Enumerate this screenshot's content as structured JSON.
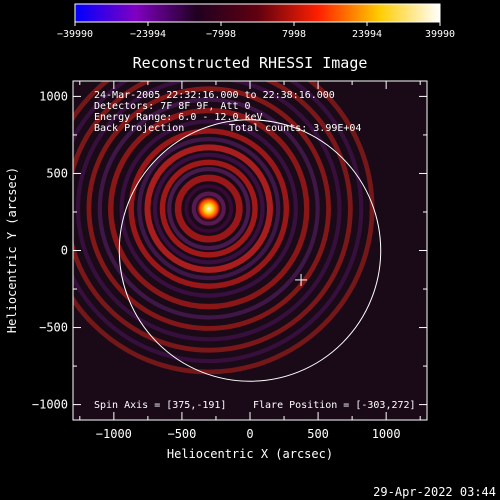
{
  "chart_data": {
    "type": "heatmap",
    "title": "Reconstructed RHESSI Image",
    "xlabel": "Heliocentric X (arcsec)",
    "ylabel": "Heliocentric Y (arcsec)",
    "xlim": [
      -1300,
      1300
    ],
    "ylim": [
      -1100,
      1100
    ],
    "x_ticks": [
      -1000,
      -500,
      0,
      500,
      1000
    ],
    "y_ticks": [
      -1000,
      -500,
      0,
      500,
      1000
    ],
    "x_tick_labels": [
      "−1000",
      "−500",
      "0",
      "500",
      "1000"
    ],
    "y_tick_labels": [
      "−1000",
      "−500",
      "0",
      "500",
      "1000"
    ],
    "colorbar": {
      "range": [
        -39990,
        39990
      ],
      "tick_labels": [
        "−39990",
        "−23994",
        "−7998",
        "7998",
        "23994",
        "39990"
      ],
      "colors": [
        "#0000ff",
        "#8000c0",
        "#200020",
        "#600010",
        "#ff2000",
        "#ffcc00",
        "#ffffff"
      ]
    },
    "flare_position": [
      -303,
      272
    ],
    "spin_axis": [
      375,
      -191
    ],
    "solar_disk_radius_arcsec": 960,
    "info_lines": [
      "24-Mar-2005 22:32:16.000 to 22:38:16.000",
      "Detectors: 7F 8F 9F, Att 0",
      "Energy Range: 6.0 - 12.0 keV"
    ],
    "back_projection_label": "Back Projection",
    "total_counts_label": "Total counts: 3.99E+04",
    "spin_axis_label": "Spin Axis = [375,-191]",
    "flare_position_label": "Flare Position = [-303,272]",
    "timestamp": "29-Apr-2022 03:44"
  }
}
